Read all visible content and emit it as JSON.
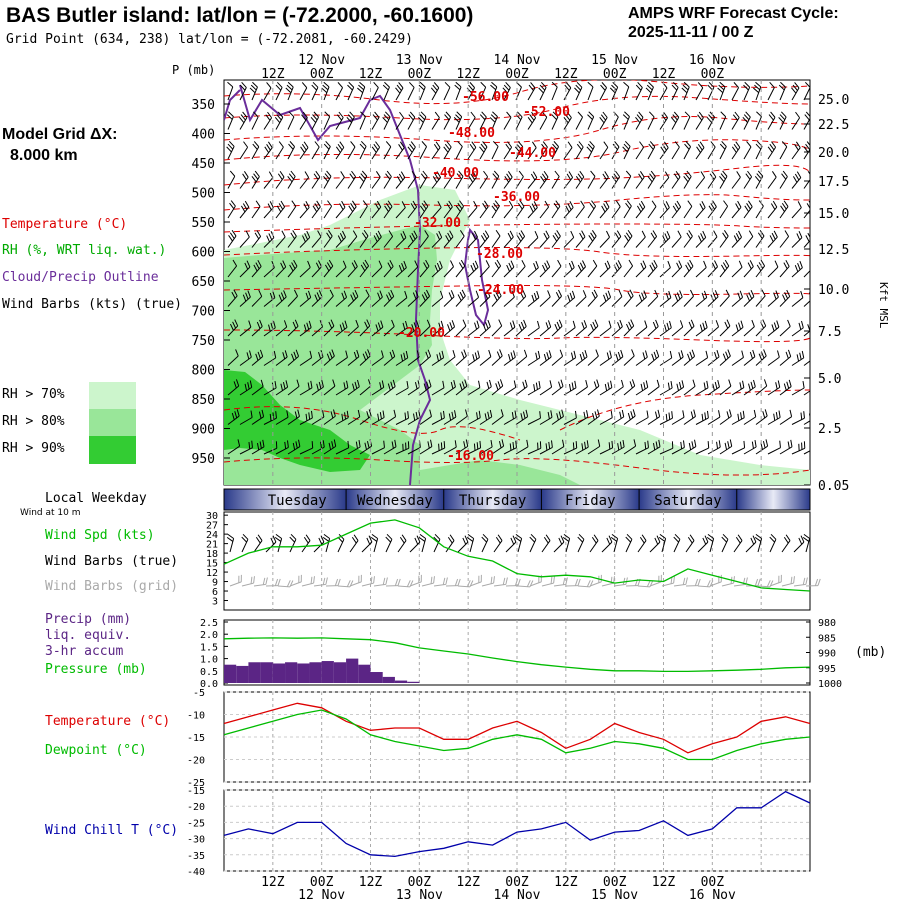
{
  "header": {
    "title": "BAS Butler island:  lat/lon = (-72.2000, -60.1600)",
    "subtitle": "Grid Point (634, 238) lat/lon = (-72.2081, -60.2429)",
    "cycle_line1": "AMPS WRF Forecast Cycle:",
    "cycle_line2": "2025-11-11 / 00  Z"
  },
  "left_panel": {
    "model_grid_line1": "Model Grid ΔX:",
    "model_grid_line2": "8.000 km",
    "legend_temperature": "Temperature (°C)",
    "legend_rh": "RH (%, WRT liq. wat.)",
    "legend_cloud": "Cloud/Precip Outline",
    "legend_wind": "Wind Barbs (kts) (true)",
    "rh_legend": [
      "RH > 70%",
      "RH > 80%",
      "RH > 90%"
    ],
    "local_weekday": "Local Weekday",
    "wind_at_10m": "Wind at 10 m",
    "wind_spd_label": "Wind Spd (kts)",
    "wind_barbs_true": "Wind Barbs (true)",
    "wind_barbs_grid": "Wind Barbs (grid)",
    "precip_label_1": "Precip (mm)",
    "precip_label_2": "liq. equiv.",
    "precip_label_3": "3-hr accum",
    "pressure_label": "Pressure (mb)",
    "temperature_label": "Temperature (°C)",
    "dewpoint_label": "Dewpoint (°C)",
    "windchill_label": "Wind Chill T (°C)"
  },
  "colors": {
    "temperature": "#dd0000",
    "dewpoint": "#00bb00",
    "windchill": "#0000aa",
    "cloud_outline": "#6a2d9a",
    "rh70": "#ccf5cc",
    "rh80": "#99e699",
    "rh90": "#33cc33",
    "precip": "#5b2585",
    "grid_barbs": "#aaaaaa"
  },
  "time_axis": {
    "top_hour_labels": [
      "12Z",
      "00Z",
      "12Z",
      "00Z",
      "12Z",
      "00Z",
      "12Z",
      "00Z",
      "12Z",
      "00Z"
    ],
    "date_labels": [
      "12 Nov",
      "13 Nov",
      "14 Nov",
      "15 Nov",
      "16 Nov"
    ],
    "weekdays": [
      "Tuesday",
      "Wednesday",
      "Thursday",
      "Friday",
      "Saturday"
    ]
  },
  "chart_data": [
    {
      "type": "contour",
      "name": "cross-section",
      "ylabel": "P (mb)",
      "ylabel_right": "Kft MSL",
      "pressure_ticks": [
        "350",
        "400",
        "450",
        "500",
        "550",
        "600",
        "650",
        "700",
        "750",
        "800",
        "850",
        "900",
        "950"
      ],
      "height_ticks": [
        "25.0",
        "22.5",
        "20.0",
        "17.5",
        "15.0",
        "12.5",
        "10.0",
        "7.5",
        "5.0",
        "2.5",
        "0.05"
      ],
      "temperature_contour_labels": [
        "-56.00",
        "-52.00",
        "-48.00",
        "-44.00",
        "-40.00",
        "-36.00",
        "-32.00",
        "-28.00",
        "-24.00",
        "-20.00",
        "-16.00"
      ]
    },
    {
      "type": "line",
      "name": "wind-speed",
      "yticks": [
        "30",
        "27",
        "24",
        "21",
        "18",
        "15",
        "12",
        "9",
        "6",
        "3"
      ],
      "ylim": [
        3,
        30
      ],
      "x_hours": [
        0,
        6,
        12,
        18,
        24,
        30,
        36,
        42,
        48,
        54,
        60,
        66,
        72,
        78,
        84,
        90,
        96,
        102,
        108,
        114,
        120,
        126,
        132,
        138,
        144
      ],
      "series": [
        {
          "name": "Wind Spd (kts)",
          "values": [
            14.5,
            18,
            20,
            20,
            20.5,
            24,
            27.5,
            28.5,
            26,
            20,
            17,
            15.5,
            11.5,
            10.5,
            11,
            10.5,
            8.5,
            9.5,
            9,
            13,
            11,
            9,
            7,
            6.5,
            6
          ]
        }
      ]
    },
    {
      "type": "bar+line",
      "name": "precip-pressure",
      "yticks_left": [
        "2.5",
        "2.0",
        "1.5",
        "1.0",
        "0.5",
        "0.0"
      ],
      "yticks_right": [
        "1000",
        "995",
        "990",
        "985",
        "980"
      ],
      "right_unit": "(mb)",
      "precip_x_hours": [
        3,
        6,
        9,
        12,
        15,
        18,
        21,
        24,
        27,
        30,
        33,
        36,
        39,
        42,
        45,
        48
      ],
      "precip_mm": [
        0.75,
        0.7,
        0.85,
        0.85,
        0.8,
        0.85,
        0.8,
        0.85,
        0.9,
        0.85,
        1.0,
        0.75,
        0.45,
        0.25,
        0.1,
        0.05
      ],
      "pressure_x_hours": [
        0,
        6,
        12,
        18,
        24,
        30,
        36,
        42,
        48,
        54,
        60,
        66,
        72,
        78,
        84,
        90,
        96,
        102,
        108,
        114,
        120,
        126,
        132,
        138,
        144
      ],
      "pressure_mb": [
        985.5,
        985.3,
        985.2,
        985.3,
        985.2,
        985.5,
        985.8,
        986.8,
        988.5,
        989.5,
        990.5,
        991.8,
        993.0,
        994.0,
        994.8,
        995.5,
        996.0,
        996.0,
        996.2,
        996.2,
        996.0,
        995.8,
        995.5,
        995.0,
        994.8
      ]
    },
    {
      "type": "line",
      "name": "temperature-dewpoint",
      "yticks": [
        "-5",
        "-10",
        "-15",
        "-20",
        "-25"
      ],
      "ylim": [
        -25,
        -5
      ],
      "x_hours": [
        0,
        6,
        12,
        18,
        24,
        30,
        36,
        42,
        48,
        54,
        60,
        66,
        72,
        78,
        84,
        90,
        96,
        102,
        108,
        114,
        120,
        126,
        132,
        138,
        144
      ],
      "series": [
        {
          "name": "Temperature (°C)",
          "values": [
            -12,
            -10.5,
            -9,
            -7.5,
            -8.5,
            -11.5,
            -13.5,
            -13,
            -13,
            -15.5,
            -15.5,
            -13,
            -11.5,
            -14,
            -17.5,
            -15.5,
            -12,
            -14,
            -15.5,
            -18.5,
            -16.5,
            -15,
            -11.5,
            -10.5,
            -12
          ]
        },
        {
          "name": "Dewpoint (°C)",
          "values": [
            -14.5,
            -13,
            -11.5,
            -10,
            -9,
            -11,
            -14.5,
            -16,
            -17,
            -18,
            -17.5,
            -15.5,
            -14.5,
            -15.5,
            -18.5,
            -17.5,
            -16,
            -16.5,
            -17.5,
            -20,
            -20,
            -18,
            -16.5,
            -15.5,
            -15
          ]
        }
      ]
    },
    {
      "type": "line",
      "name": "wind-chill",
      "yticks": [
        "-15",
        "-20",
        "-25",
        "-30",
        "-35",
        "-40"
      ],
      "ylim": [
        -40,
        -15
      ],
      "x_hours": [
        0,
        6,
        12,
        18,
        24,
        30,
        36,
        42,
        48,
        54,
        60,
        66,
        72,
        78,
        84,
        90,
        96,
        102,
        108,
        114,
        120,
        126,
        132,
        138,
        144
      ],
      "series": [
        {
          "name": "Wind Chill T (°C)",
          "values": [
            -29,
            -27,
            -28.5,
            -25,
            -25,
            -31.5,
            -35,
            -35.5,
            -34,
            -33,
            -31,
            -32,
            -28,
            -27,
            -25,
            -30.5,
            -28,
            -27.5,
            -24.5,
            -29,
            -27,
            -20.5,
            -20.5,
            -15.5,
            -19
          ]
        }
      ]
    }
  ]
}
